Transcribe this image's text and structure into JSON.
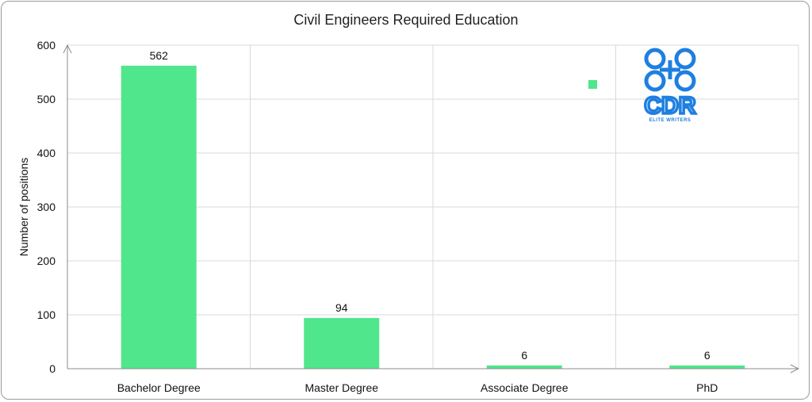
{
  "chart_data": {
    "type": "bar",
    "title": "Civil Engineers Required Education",
    "xlabel": "",
    "ylabel": "Number of positions",
    "categories": [
      "Bachelor Degree",
      "Master Degree",
      "Associate Degree",
      "PhD"
    ],
    "values": [
      562,
      94,
      6,
      6
    ],
    "data_labels": [
      "562",
      "94",
      "6",
      "6"
    ],
    "ylim": [
      0,
      600
    ],
    "yticks": [
      0,
      100,
      200,
      300,
      400,
      500,
      600
    ],
    "grid": true,
    "bar_color": "#50e68c",
    "legend": "none"
  },
  "logo": {
    "main_text": "CDR",
    "sub_text": "ELITE WRITERS",
    "color": "#1e7fe0"
  }
}
